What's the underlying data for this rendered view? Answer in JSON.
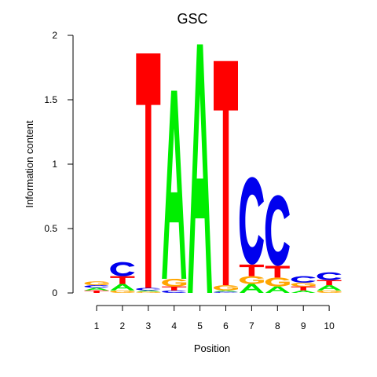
{
  "chart_data": {
    "type": "sequence-logo",
    "title": "GSC",
    "xlabel": "Position",
    "ylabel": "Information content",
    "ylim": [
      0,
      2
    ],
    "yticks": [
      {
        "value": 0,
        "label": "0"
      },
      {
        "value": 0.5,
        "label": "0.5"
      },
      {
        "value": 1,
        "label": "1"
      },
      {
        "value": 1.5,
        "label": "1.5"
      },
      {
        "value": 2,
        "label": "2"
      }
    ],
    "positions": [
      "1",
      "2",
      "3",
      "4",
      "5",
      "6",
      "7",
      "8",
      "9",
      "10"
    ],
    "colors": {
      "A": "#00ee00",
      "C": "#0000ee",
      "G": "#ffa500",
      "T": "#ff0000"
    },
    "stacks": [
      [
        {
          "letter": "T",
          "height": 0.02
        },
        {
          "letter": "A",
          "height": 0.02
        },
        {
          "letter": "C",
          "height": 0.02
        },
        {
          "letter": "G",
          "height": 0.03
        }
      ],
      [
        {
          "letter": "G",
          "height": 0.02
        },
        {
          "letter": "A",
          "height": 0.05
        },
        {
          "letter": "T",
          "height": 0.06
        },
        {
          "letter": "C",
          "height": 0.11
        }
      ],
      [
        {
          "letter": "G",
          "height": 0.01
        },
        {
          "letter": "A",
          "height": 0.01
        },
        {
          "letter": "C",
          "height": 0.02
        },
        {
          "letter": "T",
          "height": 1.82
        }
      ],
      [
        {
          "letter": "C",
          "height": 0.02
        },
        {
          "letter": "T",
          "height": 0.03
        },
        {
          "letter": "G",
          "height": 0.06
        },
        {
          "letter": "A",
          "height": 1.46
        }
      ],
      [
        {
          "letter": "A",
          "height": 1.93
        }
      ],
      [
        {
          "letter": "C",
          "height": 0.01
        },
        {
          "letter": "A",
          "height": 0.01
        },
        {
          "letter": "G",
          "height": 0.04
        },
        {
          "letter": "T",
          "height": 1.74
        }
      ],
      [
        {
          "letter": "A",
          "height": 0.07
        },
        {
          "letter": "G",
          "height": 0.06
        },
        {
          "letter": "T",
          "height": 0.09
        },
        {
          "letter": "C",
          "height": 0.68
        }
      ],
      [
        {
          "letter": "A",
          "height": 0.05
        },
        {
          "letter": "G",
          "height": 0.07
        },
        {
          "letter": "T",
          "height": 0.09
        },
        {
          "letter": "C",
          "height": 0.55
        }
      ],
      [
        {
          "letter": "A",
          "height": 0.02
        },
        {
          "letter": "T",
          "height": 0.03
        },
        {
          "letter": "G",
          "height": 0.03
        },
        {
          "letter": "C",
          "height": 0.05
        }
      ],
      [
        {
          "letter": "G",
          "height": 0.02
        },
        {
          "letter": "A",
          "height": 0.04
        },
        {
          "letter": "T",
          "height": 0.04
        },
        {
          "letter": "C",
          "height": 0.06
        }
      ]
    ]
  }
}
